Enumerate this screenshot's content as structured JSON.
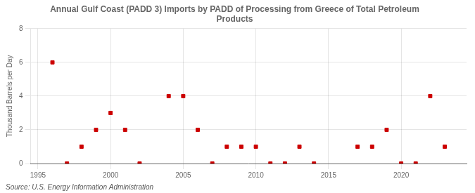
{
  "chart_data": {
    "type": "scatter",
    "title": "Annual Gulf Coast (PADD 3) Imports by PADD of Processing from Greece of Total Petroleum\nProducts",
    "ylabel": "Thousand Barrels per Day",
    "annotations": [
      "Source: U.S. Energy Information Administration"
    ],
    "x": [
      1996,
      1997,
      1998,
      1999,
      2000,
      2001,
      2002,
      2004,
      2005,
      2006,
      2007,
      2008,
      2009,
      2010,
      2011,
      2012,
      2013,
      2014,
      2017,
      2018,
      2019,
      2020,
      2021,
      2022,
      2023
    ],
    "values": [
      6,
      0,
      1,
      2,
      3,
      2,
      0,
      4,
      4,
      2,
      0,
      1,
      1,
      1,
      0,
      0,
      1,
      0,
      1,
      1,
      2,
      0,
      0,
      4,
      1
    ],
    "color": "#cc0000",
    "marker": "square",
    "xlim": [
      1994.5,
      2024.5
    ],
    "ylim": [
      0,
      8
    ],
    "xticks": [
      1995,
      2000,
      2005,
      2010,
      2015,
      2020
    ],
    "yticks": [
      0,
      2,
      4,
      6,
      8
    ],
    "grid": true
  }
}
